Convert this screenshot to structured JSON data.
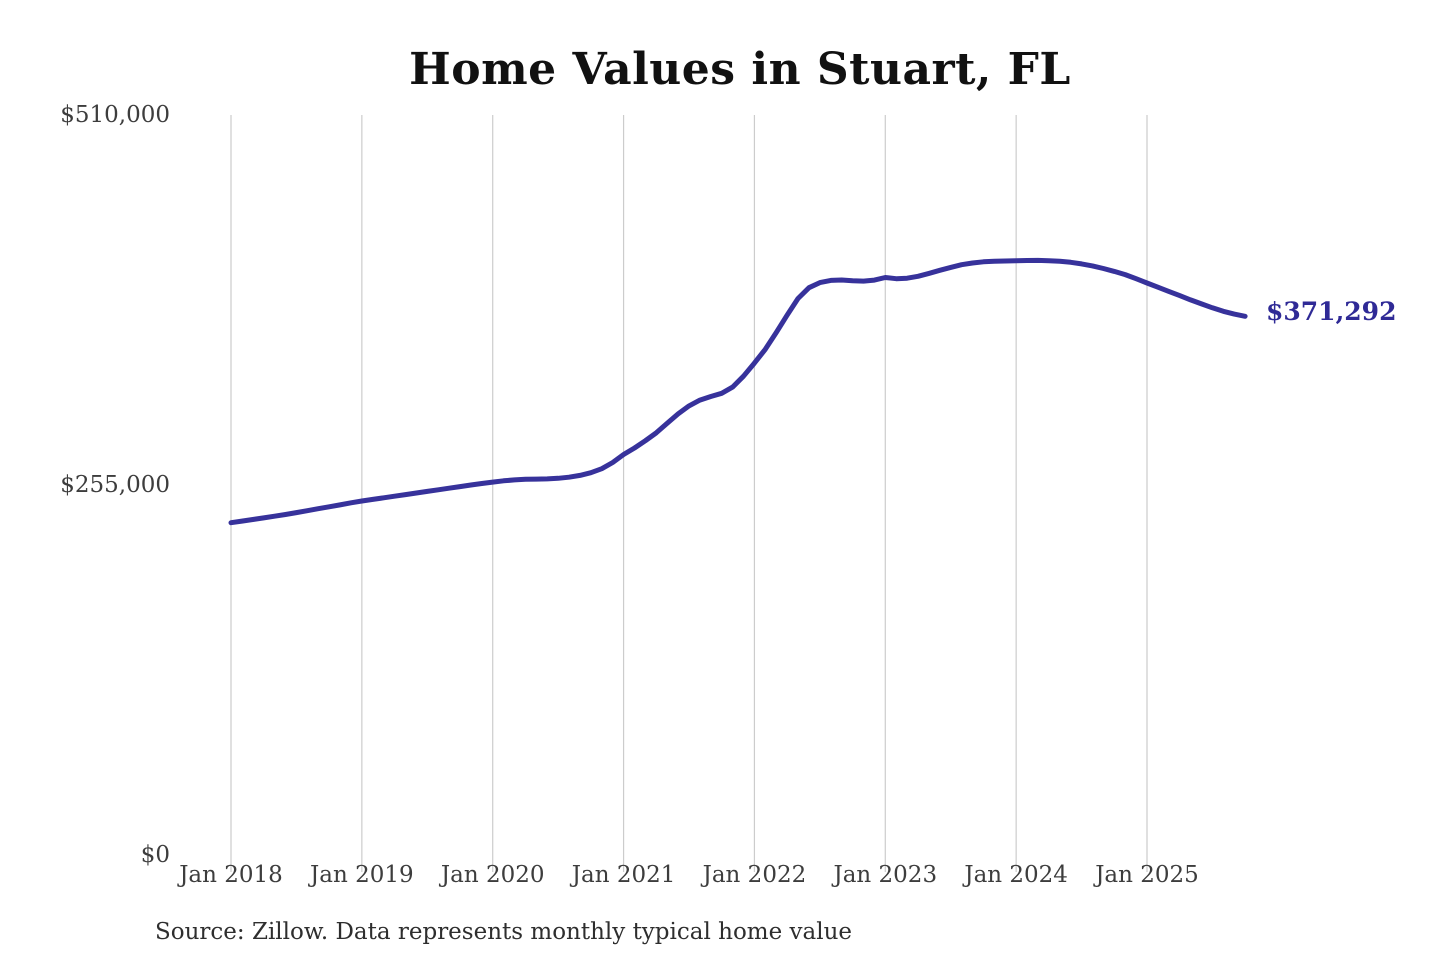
{
  "chart": {
    "title": "Home Values in Stuart, FL",
    "end_label": "$371,292",
    "source_note": "Source: Zillow. Data represents monthly typical home value",
    "colors": {
      "line": "#37329b",
      "end_label_text": "#2f2a96",
      "gridline": "#cccccc",
      "tick_text": "#3d3d3d",
      "title_text": "#111111",
      "source_text": "#2e2e2e",
      "background": "#ffffff"
    }
  },
  "chart_data": {
    "type": "line",
    "title": "Home Values in Stuart, FL",
    "xlabel": "",
    "ylabel": "",
    "ylim": [
      0,
      510000
    ],
    "grid": "vertical-only",
    "legend": "none",
    "frequency": "monthly",
    "x_start": "2018-01",
    "x_end": "2025-10",
    "x_tick_labels": [
      "Jan 2018",
      "Jan 2019",
      "Jan 2020",
      "Jan 2021",
      "Jan 2022",
      "Jan 2023",
      "Jan 2024",
      "Jan 2025"
    ],
    "y_ticks": [
      {
        "label": "$0",
        "value": 0
      },
      {
        "label": "$255,000",
        "value": 255000
      },
      {
        "label": "$510,000",
        "value": 510000
      }
    ],
    "series": [
      {
        "name": "Monthly typical home value",
        "values": [
          229000,
          230100,
          231200,
          232300,
          233500,
          234700,
          236000,
          237300,
          238700,
          240000,
          241300,
          242700,
          244000,
          245100,
          246200,
          247300,
          248400,
          249500,
          250600,
          251700,
          252800,
          253900,
          255000,
          256000,
          257000,
          257900,
          258500,
          258900,
          259100,
          259200,
          259600,
          260400,
          261600,
          263500,
          266200,
          270500,
          276000,
          280500,
          285500,
          291000,
          297500,
          304000,
          309500,
          313500,
          316000,
          318200,
          322500,
          330000,
          339000,
          348500,
          360000,
          372000,
          383500,
          391000,
          394500,
          396000,
          396300,
          395800,
          395500,
          396200,
          398000,
          397200,
          397500,
          398800,
          400800,
          403000,
          405000,
          406800,
          408000,
          408800,
          409200,
          409400,
          409500,
          409700,
          409800,
          409600,
          409200,
          408500,
          407400,
          406000,
          404200,
          402200,
          400000,
          397200,
          394200,
          391300,
          388400,
          385500,
          382600,
          379800,
          377100,
          374700,
          372800,
          371292
        ]
      }
    ],
    "last_point": {
      "x": "2025-10",
      "value": 371292,
      "label": "$371,292"
    }
  }
}
